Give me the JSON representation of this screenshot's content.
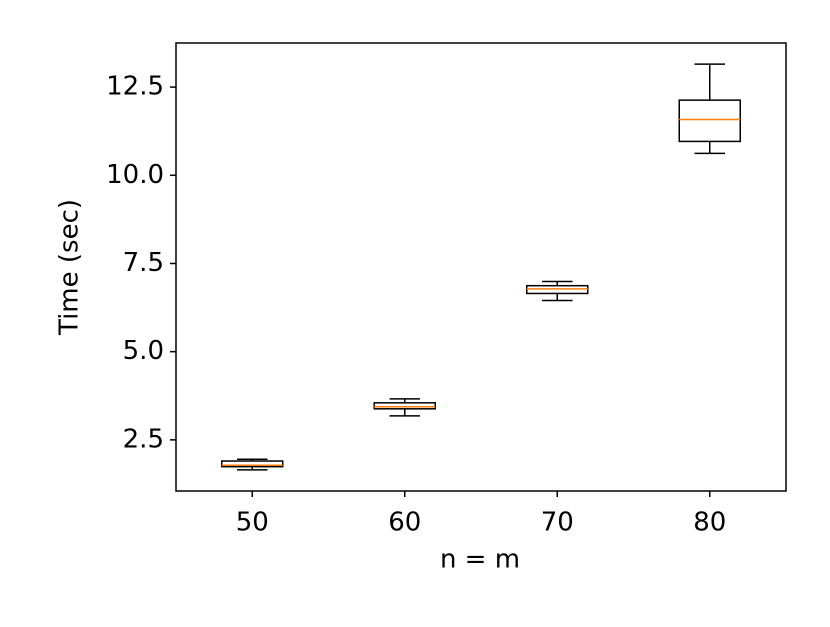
{
  "chart_data": {
    "type": "box",
    "xlabel": "n = m",
    "ylabel": "Time (sec)",
    "categories": [
      "50",
      "60",
      "70",
      "80"
    ],
    "boxes": [
      {
        "min": 1.65,
        "q1": 1.74,
        "median": 1.78,
        "q3": 1.9,
        "max": 1.95
      },
      {
        "min": 3.18,
        "q1": 3.38,
        "median": 3.44,
        "q3": 3.55,
        "max": 3.66
      },
      {
        "min": 6.45,
        "q1": 6.65,
        "median": 6.78,
        "q3": 6.87,
        "max": 6.99
      },
      {
        "min": 10.62,
        "q1": 10.96,
        "median": 11.58,
        "q3": 12.13,
        "max": 13.15
      }
    ],
    "box_color": "#000000",
    "median_color": "#ff7f0e",
    "ylim": [
      1.05,
      13.75
    ],
    "yticks": [
      2.5,
      {
        "value": 5,
        "label": "5.0"
      },
      7.5,
      {
        "value": 10,
        "label": "10.0"
      },
      12.5
    ],
    "grid": false
  }
}
